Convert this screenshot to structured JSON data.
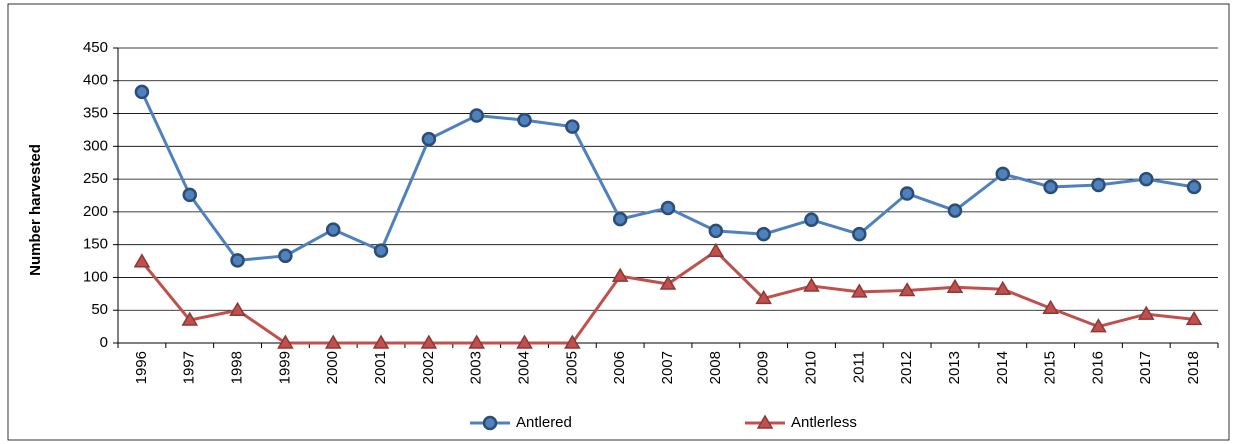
{
  "chart_data": {
    "type": "line",
    "y_label": "Number harvested",
    "categories": [
      "1996",
      "1997",
      "1998",
      "1999",
      "2000",
      "2001",
      "2002",
      "2003",
      "2004",
      "2005",
      "2006",
      "2007",
      "2008",
      "2009",
      "2010",
      "2011",
      "2012",
      "2013",
      "2014",
      "2015",
      "2016",
      "2017",
      "2018"
    ],
    "series": [
      {
        "name": "Antlered",
        "color": "#4f81bd",
        "marker": "circle",
        "values": [
          383,
          226,
          126,
          133,
          173,
          141,
          311,
          347,
          340,
          330,
          189,
          206,
          171,
          166,
          188,
          166,
          228,
          202,
          258,
          238,
          241,
          250,
          238
        ]
      },
      {
        "name": "Antlerless",
        "color": "#c0504d",
        "marker": "triangle",
        "values": [
          124,
          35,
          50,
          0,
          0,
          0,
          0,
          0,
          0,
          0,
          102,
          90,
          140,
          68,
          87,
          78,
          80,
          85,
          82,
          53,
          25,
          44,
          36
        ]
      }
    ],
    "ylim": [
      0,
      450
    ],
    "yticks": [
      0,
      50,
      100,
      150,
      200,
      250,
      300,
      350,
      400,
      450
    ],
    "grid": true,
    "legend": "bottom"
  }
}
